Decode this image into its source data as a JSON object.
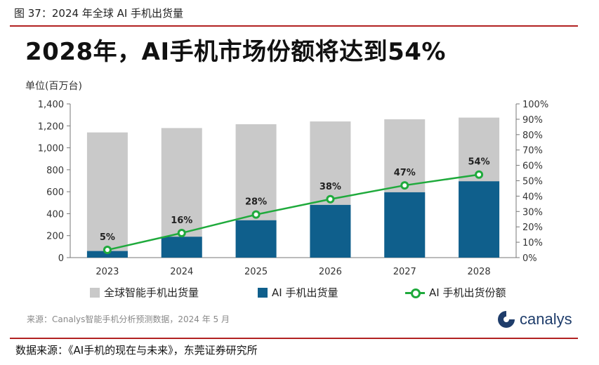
{
  "figure_caption": "图 37：2024 年全球 AI 手机出货量",
  "headline": "2028年，AI手机市场份额将达到54%",
  "unit_label": "单位(百万台)",
  "colors": {
    "total_bar": "#c9c9c9",
    "ai_bar": "#0f5f8c",
    "share_line": "#1faa3c",
    "rule": "#b22222"
  },
  "chart_data": {
    "type": "bar",
    "categories": [
      "2023",
      "2024",
      "2025",
      "2026",
      "2027",
      "2028"
    ],
    "series": [
      {
        "name": "全球智能手机出货量",
        "values": [
          1140,
          1180,
          1215,
          1240,
          1260,
          1275
        ],
        "axis": "left",
        "layer": "back"
      },
      {
        "name": "AI 手机出货量",
        "values": [
          60,
          190,
          340,
          480,
          595,
          695
        ],
        "axis": "left",
        "layer": "front"
      },
      {
        "name": "AI 手机出货份额",
        "type": "line",
        "axis": "right",
        "values": [
          5,
          16,
          28,
          38,
          47,
          54
        ],
        "data_labels": [
          "5%",
          "16%",
          "28%",
          "38%",
          "47%",
          "54%"
        ]
      }
    ],
    "ylim": [
      0,
      1400
    ],
    "y_ticks": [
      "0",
      "200",
      "400",
      "600",
      "800",
      "1,000",
      "1,200",
      "1,400"
    ],
    "y_tick_values": [
      0,
      200,
      400,
      600,
      800,
      1000,
      1200,
      1400
    ],
    "y2lim": [
      0,
      100
    ],
    "y2_ticks": [
      "0%",
      "10%",
      "20%",
      "30%",
      "40%",
      "50%",
      "60%",
      "70%",
      "80%",
      "90%",
      "100%"
    ],
    "y2_tick_values": [
      0,
      10,
      20,
      30,
      40,
      50,
      60,
      70,
      80,
      90,
      100
    ],
    "grid": false,
    "legend_position": "bottom"
  },
  "legend": {
    "total": "全球智能手机出货量",
    "ai": "AI 手机出货量",
    "share": "AI 手机出货份额"
  },
  "source_note": "来源：Canalys智能手机分析预测数据，2024 年 5 月",
  "brand_name": "canalys",
  "data_source": "数据来源：《AI手机的现在与未来》，东莞证券研究所"
}
